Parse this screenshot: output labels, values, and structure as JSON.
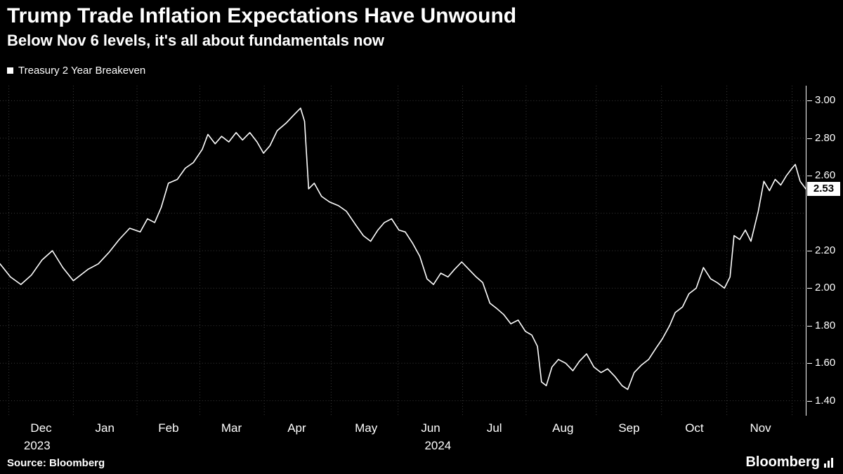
{
  "header": {
    "title": "Trump Trade Inflation Expectations Have Unwound",
    "subtitle": "Below Nov 6 levels, it's all about fundamentals now"
  },
  "legend": {
    "label": "Treasury 2 Year Breakeven"
  },
  "chart_data": {
    "type": "line",
    "series_name": "Treasury 2 Year Breakeven",
    "line_color": "#ffffff",
    "grid_color": "#3a3a3a",
    "axis_color": "#ffffff",
    "background_color": "#000000",
    "grid": true,
    "ylim": [
      1.32,
      3.08
    ],
    "y_gridlines": [
      1.4,
      1.6,
      1.8,
      2.0,
      2.2,
      2.4,
      2.6,
      2.8,
      3.0
    ],
    "y_tick_labels": [
      {
        "text": "3.00",
        "value": 3.0
      },
      {
        "text": "2.80",
        "value": 2.8
      },
      {
        "text": "2.60",
        "value": 2.6
      },
      {
        "text": "2.20",
        "value": 2.2
      },
      {
        "text": "2.00",
        "value": 2.0
      },
      {
        "text": "1.80",
        "value": 1.8
      },
      {
        "text": "1.60",
        "value": 1.6
      },
      {
        "text": "1.40",
        "value": 1.4
      }
    ],
    "last_price_label": {
      "text": "2.53",
      "value": 2.53
    },
    "x_month_labels": [
      {
        "text": "Dec",
        "x_pct": 5.1
      },
      {
        "text": "Jan",
        "x_pct": 13.0
      },
      {
        "text": "Feb",
        "x_pct": 20.9
      },
      {
        "text": "Mar",
        "x_pct": 28.7
      },
      {
        "text": "Apr",
        "x_pct": 36.8
      },
      {
        "text": "May",
        "x_pct": 45.4
      },
      {
        "text": "Jun",
        "x_pct": 53.4
      },
      {
        "text": "Jul",
        "x_pct": 61.3
      },
      {
        "text": "Aug",
        "x_pct": 69.8
      },
      {
        "text": "Sep",
        "x_pct": 78.0
      },
      {
        "text": "Oct",
        "x_pct": 86.1
      },
      {
        "text": "Nov",
        "x_pct": 94.3
      }
    ],
    "x_year_labels": [
      {
        "text": "2023",
        "x_pct": 4.6
      },
      {
        "text": "2024",
        "x_pct": 54.3
      }
    ],
    "x_gridlines_pct": [
      1.1,
      9.1,
      17.0,
      24.8,
      32.8,
      41.1,
      49.4,
      57.4,
      65.3,
      74.0,
      82.1,
      90.2,
      98.3
    ],
    "points": [
      [
        0.0,
        2.13
      ],
      [
        1.3,
        2.06
      ],
      [
        2.6,
        2.02
      ],
      [
        3.9,
        2.07
      ],
      [
        5.2,
        2.15
      ],
      [
        6.5,
        2.2
      ],
      [
        7.8,
        2.11
      ],
      [
        9.1,
        2.04
      ],
      [
        10.9,
        2.1
      ],
      [
        12.2,
        2.13
      ],
      [
        13.5,
        2.19
      ],
      [
        14.8,
        2.26
      ],
      [
        16.1,
        2.32
      ],
      [
        17.4,
        2.3
      ],
      [
        18.3,
        2.37
      ],
      [
        19.2,
        2.35
      ],
      [
        20.0,
        2.43
      ],
      [
        20.9,
        2.56
      ],
      [
        22.0,
        2.58
      ],
      [
        23.0,
        2.64
      ],
      [
        24.0,
        2.67
      ],
      [
        25.1,
        2.74
      ],
      [
        25.8,
        2.82
      ],
      [
        26.7,
        2.77
      ],
      [
        27.5,
        2.81
      ],
      [
        28.4,
        2.78
      ],
      [
        29.3,
        2.83
      ],
      [
        30.1,
        2.79
      ],
      [
        31.0,
        2.83
      ],
      [
        31.9,
        2.78
      ],
      [
        32.7,
        2.72
      ],
      [
        33.5,
        2.76
      ],
      [
        34.4,
        2.84
      ],
      [
        35.5,
        2.88
      ],
      [
        36.6,
        2.93
      ],
      [
        37.3,
        2.96
      ],
      [
        37.8,
        2.89
      ],
      [
        38.3,
        2.53
      ],
      [
        39.0,
        2.56
      ],
      [
        39.9,
        2.49
      ],
      [
        40.9,
        2.46
      ],
      [
        42.0,
        2.44
      ],
      [
        43.0,
        2.41
      ],
      [
        44.1,
        2.34
      ],
      [
        45.1,
        2.28
      ],
      [
        46.0,
        2.25
      ],
      [
        46.9,
        2.31
      ],
      [
        47.7,
        2.35
      ],
      [
        48.6,
        2.37
      ],
      [
        49.5,
        2.31
      ],
      [
        50.3,
        2.3
      ],
      [
        51.2,
        2.24
      ],
      [
        52.1,
        2.17
      ],
      [
        53.0,
        2.05
      ],
      [
        53.8,
        2.02
      ],
      [
        54.7,
        2.08
      ],
      [
        55.6,
        2.06
      ],
      [
        56.4,
        2.1
      ],
      [
        57.3,
        2.14
      ],
      [
        58.2,
        2.1
      ],
      [
        59.1,
        2.06
      ],
      [
        59.9,
        2.03
      ],
      [
        60.8,
        1.92
      ],
      [
        61.7,
        1.89
      ],
      [
        62.5,
        1.86
      ],
      [
        63.4,
        1.81
      ],
      [
        64.3,
        1.83
      ],
      [
        65.2,
        1.77
      ],
      [
        66.0,
        1.75
      ],
      [
        66.7,
        1.69
      ],
      [
        67.2,
        1.5
      ],
      [
        67.8,
        1.48
      ],
      [
        68.5,
        1.58
      ],
      [
        69.3,
        1.62
      ],
      [
        70.2,
        1.6
      ],
      [
        71.1,
        1.56
      ],
      [
        71.9,
        1.61
      ],
      [
        72.8,
        1.65
      ],
      [
        73.7,
        1.58
      ],
      [
        74.6,
        1.55
      ],
      [
        75.4,
        1.57
      ],
      [
        76.3,
        1.53
      ],
      [
        77.2,
        1.48
      ],
      [
        77.9,
        1.46
      ],
      [
        78.7,
        1.55
      ],
      [
        79.6,
        1.59
      ],
      [
        80.5,
        1.62
      ],
      [
        81.4,
        1.68
      ],
      [
        82.2,
        1.73
      ],
      [
        83.1,
        1.8
      ],
      [
        83.8,
        1.87
      ],
      [
        84.7,
        1.9
      ],
      [
        85.5,
        1.97
      ],
      [
        86.4,
        2.0
      ],
      [
        87.3,
        2.11
      ],
      [
        88.2,
        2.05
      ],
      [
        89.0,
        2.03
      ],
      [
        89.9,
        2.0
      ],
      [
        90.6,
        2.06
      ],
      [
        91.1,
        2.28
      ],
      [
        91.8,
        2.26
      ],
      [
        92.5,
        2.31
      ],
      [
        93.2,
        2.25
      ],
      [
        94.1,
        2.41
      ],
      [
        94.8,
        2.57
      ],
      [
        95.5,
        2.52
      ],
      [
        96.2,
        2.58
      ],
      [
        96.9,
        2.55
      ],
      [
        97.6,
        2.6
      ],
      [
        98.3,
        2.64
      ],
      [
        98.7,
        2.66
      ],
      [
        99.3,
        2.57
      ],
      [
        100.0,
        2.53
      ]
    ]
  },
  "footer": {
    "source": "Source: Bloomberg",
    "brand": "Bloomberg"
  }
}
